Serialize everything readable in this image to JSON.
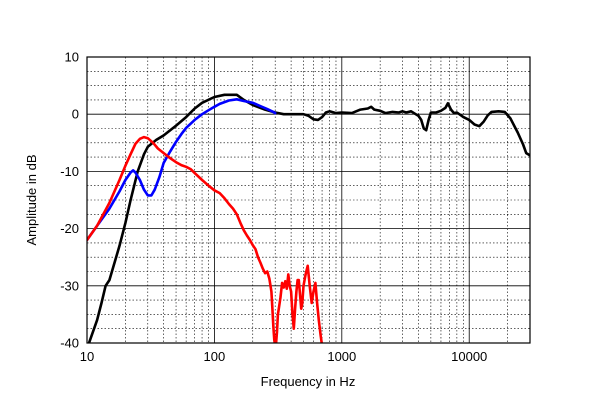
{
  "chart_data": {
    "type": "line",
    "xlabel": "Frequency in Hz",
    "ylabel": "Amplitude in dB",
    "x_scale": "log",
    "xlim": [
      10,
      30000
    ],
    "ylim": [
      -40,
      10
    ],
    "grid": true,
    "x_ticks": [
      {
        "value": 10,
        "label": "10"
      },
      {
        "value": 100,
        "label": "100"
      },
      {
        "value": 1000,
        "label": "1000"
      },
      {
        "value": 10000,
        "label": "10000"
      }
    ],
    "y_ticks": [
      {
        "value": 10,
        "label": "10"
      },
      {
        "value": 0,
        "label": "0"
      },
      {
        "value": -10,
        "label": "-10"
      },
      {
        "value": -20,
        "label": "-20"
      },
      {
        "value": -30,
        "label": "-30"
      },
      {
        "value": -40,
        "label": "-40"
      }
    ],
    "series": [
      {
        "color": "#000000",
        "points": [
          [
            10,
            -41
          ],
          [
            12,
            -36
          ],
          [
            13,
            -33
          ],
          [
            14,
            -30
          ],
          [
            15,
            -29
          ],
          [
            18,
            -23
          ],
          [
            20,
            -19
          ],
          [
            22,
            -15
          ],
          [
            25,
            -10
          ],
          [
            28,
            -7
          ],
          [
            30,
            -5.7
          ],
          [
            35,
            -4.5
          ],
          [
            40,
            -3.7
          ],
          [
            50,
            -2
          ],
          [
            60,
            -0.5
          ],
          [
            70,
            1
          ],
          [
            80,
            2
          ],
          [
            100,
            3
          ],
          [
            120,
            3.4
          ],
          [
            150,
            3.4
          ],
          [
            170,
            2.5
          ],
          [
            200,
            1.6
          ],
          [
            250,
            0.8
          ],
          [
            300,
            0.3
          ],
          [
            350,
            0
          ],
          [
            400,
            0
          ],
          [
            450,
            0
          ],
          [
            500,
            0
          ],
          [
            550,
            -0.3
          ],
          [
            600,
            -0.9
          ],
          [
            650,
            -1
          ],
          [
            700,
            -0.5
          ],
          [
            750,
            0.3
          ],
          [
            800,
            0.5
          ],
          [
            900,
            0.2
          ],
          [
            1000,
            0.3
          ],
          [
            1200,
            0.2
          ],
          [
            1400,
            0.8
          ],
          [
            1600,
            1
          ],
          [
            1700,
            1.3
          ],
          [
            1800,
            0.8
          ],
          [
            2000,
            0.6
          ],
          [
            2200,
            0.2
          ],
          [
            2500,
            0.4
          ],
          [
            2800,
            0.3
          ],
          [
            3000,
            0.5
          ],
          [
            3200,
            0.3
          ],
          [
            3500,
            0.5
          ],
          [
            3800,
            0
          ],
          [
            4000,
            -0.3
          ],
          [
            4200,
            -1
          ],
          [
            4400,
            -2.5
          ],
          [
            4600,
            -2.8
          ],
          [
            4800,
            -1
          ],
          [
            5000,
            0.3
          ],
          [
            5500,
            0.3
          ],
          [
            6000,
            0.6
          ],
          [
            6500,
            1.1
          ],
          [
            6800,
            1.9
          ],
          [
            7200,
            0.8
          ],
          [
            7600,
            0.2
          ],
          [
            8000,
            0.3
          ],
          [
            9000,
            -0.5
          ],
          [
            10000,
            -1
          ],
          [
            11000,
            -1.8
          ],
          [
            12000,
            -2.1
          ],
          [
            13000,
            -1.3
          ],
          [
            14000,
            -0.2
          ],
          [
            15000,
            0.4
          ],
          [
            17000,
            0.5
          ],
          [
            19000,
            0.4
          ],
          [
            21000,
            -0.7
          ],
          [
            24000,
            -3.2
          ],
          [
            26500,
            -5.3
          ],
          [
            28000,
            -6.8
          ],
          [
            30000,
            -7.2
          ]
        ]
      },
      {
        "color": "#0000ff",
        "points": [
          [
            10,
            -22
          ],
          [
            12,
            -19.5
          ],
          [
            15,
            -16.5
          ],
          [
            18,
            -13.5
          ],
          [
            20,
            -11.5
          ],
          [
            22,
            -10.2
          ],
          [
            23,
            -9.8
          ],
          [
            24,
            -10.2
          ],
          [
            26,
            -11.5
          ],
          [
            28,
            -13.2
          ],
          [
            30,
            -14.2
          ],
          [
            32,
            -14.2
          ],
          [
            34,
            -13.2
          ],
          [
            37,
            -11
          ],
          [
            40,
            -8.5
          ],
          [
            45,
            -6.5
          ],
          [
            50,
            -4.8
          ],
          [
            55,
            -3.5
          ],
          [
            60,
            -2.4
          ],
          [
            70,
            -1
          ],
          [
            80,
            0
          ],
          [
            90,
            0.7
          ],
          [
            100,
            1.3
          ],
          [
            110,
            1.8
          ],
          [
            130,
            2.4
          ],
          [
            150,
            2.6
          ],
          [
            170,
            2.3
          ],
          [
            200,
            2
          ],
          [
            230,
            1.4
          ],
          [
            260,
            0.9
          ],
          [
            290,
            0.4
          ],
          [
            300,
            0.2
          ]
        ]
      },
      {
        "color": "#ff0000",
        "points": [
          [
            10,
            -22
          ],
          [
            12,
            -19.5
          ],
          [
            15,
            -15.5
          ],
          [
            18,
            -11.5
          ],
          [
            20,
            -9
          ],
          [
            22,
            -7
          ],
          [
            24,
            -5.2
          ],
          [
            26,
            -4.3
          ],
          [
            28,
            -4
          ],
          [
            30,
            -4.2
          ],
          [
            33,
            -5
          ],
          [
            36,
            -6
          ],
          [
            40,
            -6.8
          ],
          [
            45,
            -7.7
          ],
          [
            50,
            -8.4
          ],
          [
            55,
            -8.9
          ],
          [
            60,
            -9.2
          ],
          [
            65,
            -9.6
          ],
          [
            70,
            -10.3
          ],
          [
            80,
            -11.5
          ],
          [
            90,
            -12.5
          ],
          [
            100,
            -13.3
          ],
          [
            110,
            -13.8
          ],
          [
            120,
            -14.7
          ],
          [
            130,
            -15.7
          ],
          [
            140,
            -16.5
          ],
          [
            150,
            -17.5
          ],
          [
            160,
            -19
          ],
          [
            170,
            -20.3
          ],
          [
            180,
            -21.2
          ],
          [
            190,
            -22
          ],
          [
            200,
            -22.9
          ],
          [
            210,
            -23.6
          ],
          [
            220,
            -25
          ],
          [
            230,
            -26
          ],
          [
            240,
            -27
          ],
          [
            250,
            -27.8
          ],
          [
            260,
            -27.5
          ],
          [
            270,
            -28.8
          ],
          [
            280,
            -31
          ],
          [
            285,
            -34
          ],
          [
            290,
            -37
          ],
          [
            295,
            -39.5
          ],
          [
            300,
            -40.5
          ],
          [
            305,
            -40
          ],
          [
            310,
            -38
          ],
          [
            315,
            -35
          ],
          [
            320,
            -34
          ],
          [
            330,
            -32
          ],
          [
            340,
            -29.5
          ],
          [
            350,
            -30.3
          ],
          [
            360,
            -29.2
          ],
          [
            370,
            -30.5
          ],
          [
            380,
            -28
          ],
          [
            390,
            -30
          ],
          [
            400,
            -31
          ],
          [
            410,
            -35
          ],
          [
            420,
            -37.5
          ],
          [
            430,
            -34
          ],
          [
            440,
            -31
          ],
          [
            450,
            -29
          ],
          [
            460,
            -29
          ],
          [
            470,
            -31.5
          ],
          [
            480,
            -34
          ],
          [
            490,
            -33
          ],
          [
            500,
            -30
          ],
          [
            520,
            -28
          ],
          [
            540,
            -26.5
          ],
          [
            560,
            -30
          ],
          [
            580,
            -33
          ],
          [
            600,
            -31
          ],
          [
            620,
            -29.5
          ],
          [
            640,
            -33
          ],
          [
            660,
            -36
          ],
          [
            680,
            -38.5
          ],
          [
            700,
            -40.5
          ]
        ]
      }
    ]
  }
}
